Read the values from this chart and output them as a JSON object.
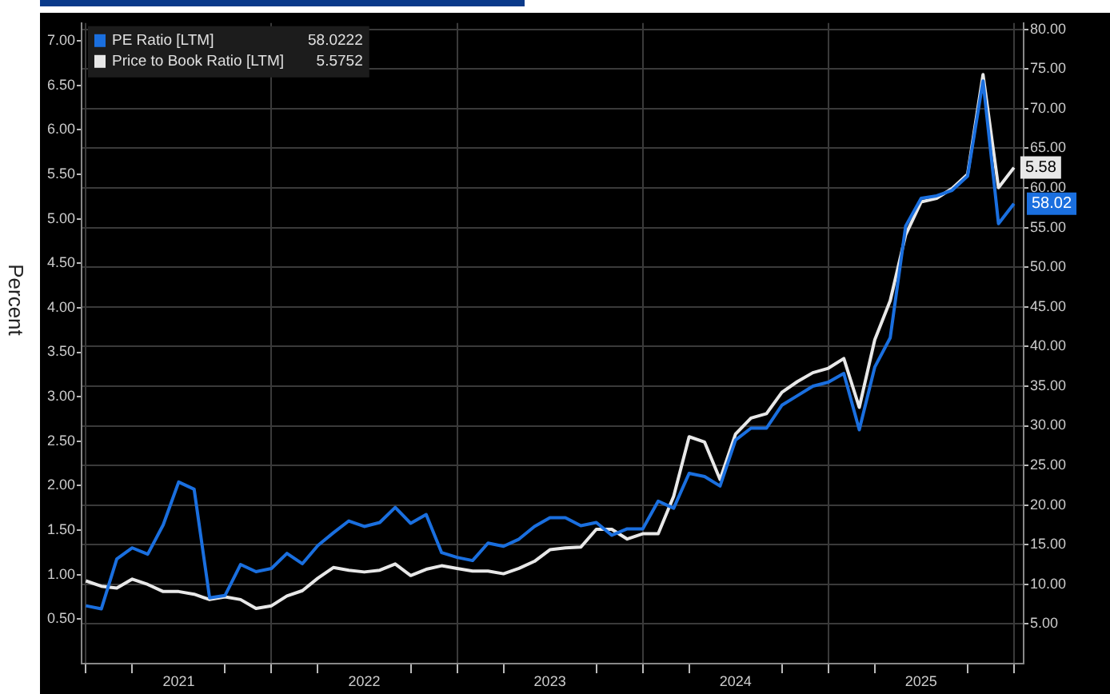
{
  "chart_data": {
    "type": "line",
    "ylabel": "Percent",
    "x": [
      "2021-01",
      "2021-02",
      "2021-03",
      "2021-04",
      "2021-05",
      "2021-06",
      "2021-07",
      "2021-08",
      "2021-09",
      "2021-10",
      "2021-11",
      "2021-12",
      "2022-01",
      "2022-02",
      "2022-03",
      "2022-04",
      "2022-05",
      "2022-06",
      "2022-07",
      "2022-08",
      "2022-09",
      "2022-10",
      "2022-11",
      "2022-12",
      "2023-01",
      "2023-02",
      "2023-03",
      "2023-04",
      "2023-05",
      "2023-06",
      "2023-07",
      "2023-08",
      "2023-09",
      "2023-10",
      "2023-11",
      "2023-12",
      "2024-01",
      "2024-02",
      "2024-03",
      "2024-04",
      "2024-05",
      "2024-06",
      "2024-07",
      "2024-08",
      "2024-09",
      "2024-10",
      "2024-11",
      "2024-12",
      "2025-01",
      "2025-02",
      "2025-03",
      "2025-04",
      "2025-05",
      "2025-06",
      "2025-07",
      "2025-08",
      "2025-09",
      "2025-10",
      "2025-11",
      "2025-12",
      "2026-01"
    ],
    "series": [
      {
        "name": "PE Ratio [LTM]",
        "color": "#1a6fdf",
        "axis": "y2",
        "values": [
          7.3,
          6.9,
          13.2,
          14.6,
          13.8,
          17.5,
          22.9,
          22.0,
          8.3,
          8.6,
          12.5,
          11.6,
          12.0,
          13.9,
          12.6,
          14.9,
          16.5,
          18.0,
          17.3,
          17.8,
          19.7,
          17.7,
          18.8,
          14.0,
          13.4,
          13.0,
          15.2,
          14.8,
          15.7,
          17.3,
          18.4,
          18.4,
          17.4,
          17.8,
          16.2,
          17.0,
          17.0,
          20.5,
          19.6,
          24.0,
          23.6,
          22.4,
          28.2,
          29.7,
          29.7,
          32.6,
          33.8,
          35.0,
          35.5,
          36.6,
          29.5,
          37.4,
          41.1,
          55.2,
          58.7,
          59.0,
          59.7,
          61.5,
          73.5,
          55.5,
          58.0222
        ],
        "value_labels": [
          null,
          null,
          null,
          null,
          null,
          null,
          null,
          null,
          null,
          null,
          null,
          null,
          null,
          null,
          null,
          null,
          null,
          null,
          null,
          null,
          null,
          null,
          null,
          null,
          null,
          null,
          null,
          null,
          null,
          null,
          null,
          null,
          null,
          null,
          null,
          null,
          null,
          null,
          null,
          null,
          null,
          null,
          null,
          null,
          null,
          null,
          null,
          null,
          null,
          null,
          null,
          null,
          null,
          null,
          null,
          null,
          null,
          null,
          null,
          null,
          "58.02"
        ]
      },
      {
        "name": "Price to Book Ratio [LTM]",
        "color": "#e8e8e8",
        "values": [
          0.93,
          0.87,
          0.85,
          0.95,
          0.89,
          0.81,
          0.81,
          0.78,
          0.72,
          0.75,
          0.72,
          0.62,
          0.65,
          0.76,
          0.82,
          0.96,
          1.08,
          1.05,
          1.03,
          1.05,
          1.12,
          0.99,
          1.06,
          1.1,
          1.07,
          1.04,
          1.04,
          1.01,
          1.07,
          1.15,
          1.28,
          1.3,
          1.31,
          1.51,
          1.51,
          1.4,
          1.46,
          1.46,
          1.88,
          2.55,
          2.49,
          2.07,
          2.58,
          2.76,
          2.81,
          3.05,
          3.17,
          3.27,
          3.32,
          3.43,
          2.88,
          3.64,
          4.08,
          4.82,
          5.19,
          5.23,
          5.34,
          5.5,
          6.62,
          5.35,
          5.5752
        ],
        "value_labels": [
          null,
          null,
          null,
          null,
          null,
          null,
          null,
          null,
          null,
          null,
          null,
          null,
          null,
          null,
          null,
          null,
          null,
          null,
          null,
          null,
          null,
          null,
          null,
          null,
          null,
          null,
          null,
          null,
          null,
          null,
          null,
          null,
          null,
          null,
          null,
          null,
          null,
          null,
          null,
          null,
          null,
          null,
          null,
          null,
          null,
          null,
          null,
          null,
          null,
          null,
          null,
          null,
          null,
          null,
          null,
          null,
          null,
          null,
          null,
          null,
          "5.58"
        ]
      }
    ],
    "annotations": [
      "58.0222",
      "5.5752"
    ],
    "xlim": [
      "2020-12-23",
      "2026-01-20"
    ],
    "xticks": [
      {
        "value": "2021-01",
        "label": null
      },
      {
        "value": "2021-04",
        "label": null
      },
      {
        "value": "2021-07",
        "label": "2021"
      },
      {
        "value": "2021-10",
        "label": null
      },
      {
        "value": "2022-01",
        "label": null
      },
      {
        "value": "2022-04",
        "label": null
      },
      {
        "value": "2022-07",
        "label": "2022"
      },
      {
        "value": "2022-10",
        "label": null
      },
      {
        "value": "2023-01",
        "label": null
      },
      {
        "value": "2023-04",
        "label": null
      },
      {
        "value": "2023-07",
        "label": "2023"
      },
      {
        "value": "2023-10",
        "label": null
      },
      {
        "value": "2024-01",
        "label": null
      },
      {
        "value": "2024-04",
        "label": null
      },
      {
        "value": "2024-07",
        "label": "2024"
      },
      {
        "value": "2024-10",
        "label": null
      },
      {
        "value": "2025-01",
        "label": null
      },
      {
        "value": "2025-04",
        "label": null
      },
      {
        "value": "2025-07",
        "label": "2025"
      },
      {
        "value": "2025-10",
        "label": null
      },
      {
        "value": "2026-01",
        "label": null
      }
    ],
    "ylim": [
      0,
      7.2
    ],
    "yticks": [
      {
        "value": 0.5,
        "label": "0.50"
      },
      {
        "value": 1,
        "label": "1.00"
      },
      {
        "value": 1.5,
        "label": "1.50"
      },
      {
        "value": 2,
        "label": "2.00"
      },
      {
        "value": 2.5,
        "label": "2.50"
      },
      {
        "value": 3,
        "label": "3.00"
      },
      {
        "value": 3.5,
        "label": "3.50"
      },
      {
        "value": 4,
        "label": "4.00"
      },
      {
        "value": 4.5,
        "label": "4.50"
      },
      {
        "value": 5,
        "label": "5.00"
      },
      {
        "value": 5.5,
        "label": "5.50"
      },
      {
        "value": 6,
        "label": "6.00"
      },
      {
        "value": 6.5,
        "label": "6.50"
      },
      {
        "value": 7,
        "label": "7.00"
      }
    ],
    "y2lim": [
      0,
      80.8
    ],
    "y2ticks": [
      {
        "value": 5,
        "label": "5.00"
      },
      {
        "value": 10,
        "label": "10.00"
      },
      {
        "value": 15,
        "label": "15.00"
      },
      {
        "value": 20,
        "label": "20.00"
      },
      {
        "value": 25,
        "label": "25.00"
      },
      {
        "value": 30,
        "label": "30.00"
      },
      {
        "value": 35,
        "label": "35.00"
      },
      {
        "value": 40,
        "label": "40.00"
      },
      {
        "value": 45,
        "label": "45.00"
      },
      {
        "value": 50,
        "label": "50.00"
      },
      {
        "value": 55,
        "label": "55.00"
      },
      {
        "value": 60,
        "label": "60.00"
      },
      {
        "value": 65,
        "label": "65.00"
      },
      {
        "value": 70,
        "label": "70.00"
      },
      {
        "value": 75,
        "label": "75.00"
      },
      {
        "value": 80,
        "label": "80.00"
      }
    ],
    "grid": true,
    "legend": "top left",
    "marker": "none",
    "line_style": "solid"
  }
}
